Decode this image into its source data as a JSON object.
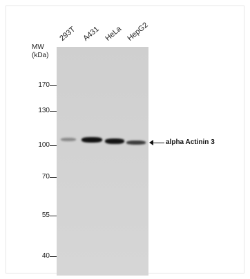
{
  "lanes": [
    "293T",
    "A431",
    "HeLa",
    "HepG2"
  ],
  "mw_title": [
    "MW",
    "(kDa)"
  ],
  "mw_markers": [
    "170",
    "130",
    "100",
    "70",
    "55",
    "40"
  ],
  "target_label": "alpha Actinin 3",
  "band_intensities": [
    0.25,
    1.0,
    0.95,
    0.7
  ]
}
